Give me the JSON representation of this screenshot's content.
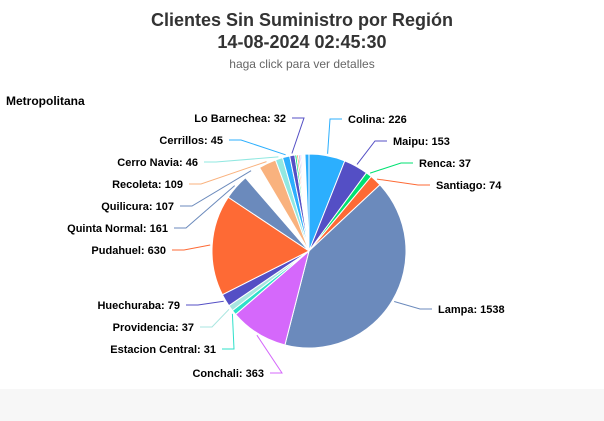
{
  "header": {
    "title_line1": "Clientes Sin Suministro por Región",
    "title_line2": "14-08-2024 02:45:30",
    "subtitle": "haga click para ver detalles"
  },
  "region_label": "Metropolitana",
  "chart_data": {
    "type": "pie",
    "title": "Clientes Sin Suministro por Región",
    "subtitle": "haga click para ver detalles",
    "slices": [
      {
        "name": "Colina",
        "value": 226,
        "color": "#2caffe"
      },
      {
        "name": "Maipu",
        "value": 153,
        "color": "#544fc5"
      },
      {
        "name": "Renca",
        "value": 37,
        "color": "#00e272"
      },
      {
        "name": "Santiago",
        "value": 74,
        "color": "#fe6a35"
      },
      {
        "name": "Lampa",
        "value": 1538,
        "color": "#6b8abc"
      },
      {
        "name": "Conchali",
        "value": 363,
        "color": "#d568fb"
      },
      {
        "name": "Estacion Central",
        "value": 31,
        "color": "#2ee0ca"
      },
      {
        "name": "Providencia",
        "value": 37,
        "color": "#a8e6e0"
      },
      {
        "name": "Huechuraba",
        "value": 79,
        "color": "#544fc5"
      },
      {
        "name": "Pudahuel",
        "value": 630,
        "color": "#fe6a35"
      },
      {
        "name": "Quinta Normal",
        "value": 161,
        "color": "#6b8abc"
      },
      {
        "name": "Quilicura",
        "value": 107,
        "color": "#ffffff"
      },
      {
        "name": "Recoleta",
        "value": 109,
        "color": "#f9b27e"
      },
      {
        "name": "Cerro Navia",
        "value": 46,
        "color": "#91e8e1"
      },
      {
        "name": "Cerrillos",
        "value": 45,
        "color": "#2caffe"
      },
      {
        "name": "Lo Barnechea",
        "value": 32,
        "color": "#544fc5"
      },
      {
        "name": "",
        "value": 12,
        "color": "#00e272"
      },
      {
        "name": "",
        "value": 10,
        "color": "#fe6a35"
      },
      {
        "name": "",
        "value": 9,
        "color": "#6b8abc"
      },
      {
        "name": "",
        "value": 8,
        "color": "#d568fb"
      },
      {
        "name": "",
        "value": 7,
        "color": "#2ee0ca"
      },
      {
        "name": "",
        "value": 6,
        "color": "#fa4b42"
      },
      {
        "name": "",
        "value": 6,
        "color": "#feb56a"
      },
      {
        "name": "",
        "value": 5,
        "color": "#91e8e1"
      },
      {
        "name": "",
        "value": 25,
        "color": "#2caffe"
      }
    ]
  }
}
